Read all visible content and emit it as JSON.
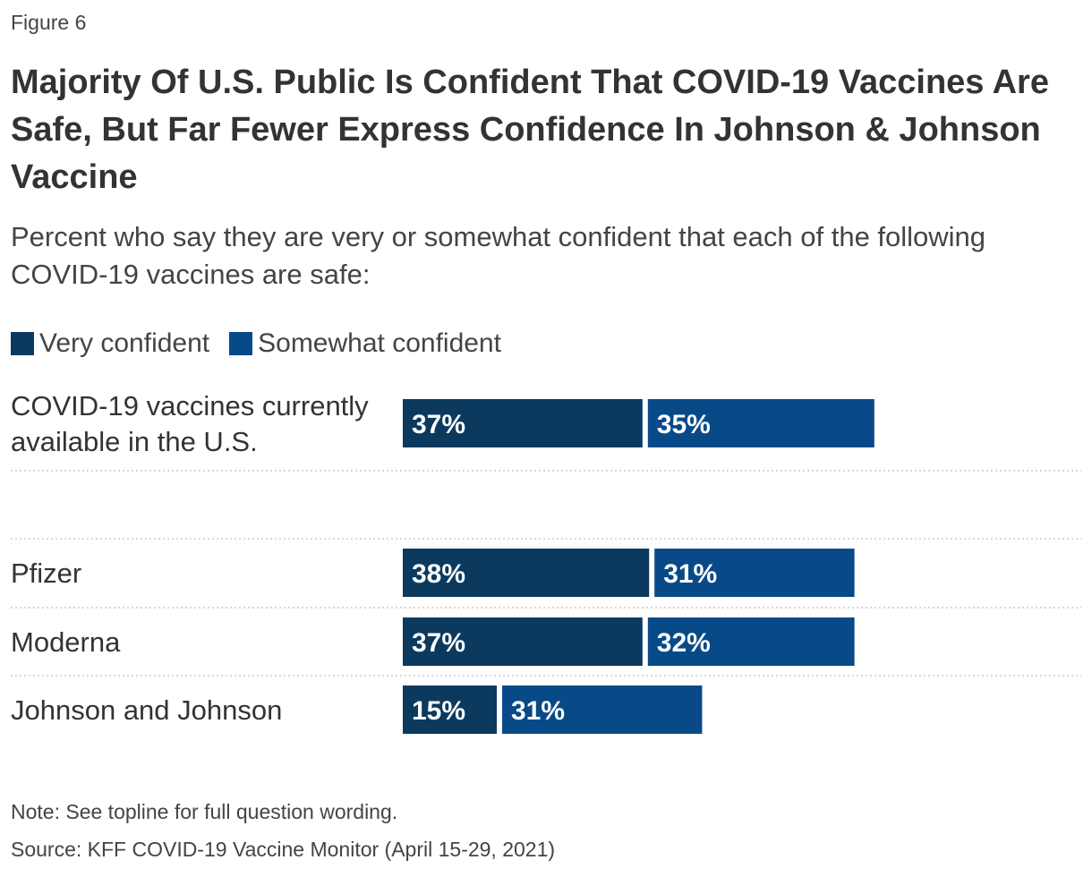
{
  "figure_label": "Figure 6",
  "title": "Majority Of U.S. Public Is Confident That COVID-19 Vaccines Are Safe, But Far Fewer Express Confidence In Johnson & Johnson Vaccine",
  "subtitle": "Percent who say they are very or somewhat confident that each of the following COVID-19 vaccines are safe:",
  "note": "Note: See topline for full question wording.",
  "source": "Source: KFF COVID-19 Vaccine Monitor (April 15-29, 2021)",
  "colors": {
    "very_confident": "#0b3a5e",
    "somewhat_confident": "#084a88",
    "label_text": "#ffffff",
    "divider": "#cccccc"
  },
  "chart_data": {
    "type": "bar",
    "orientation": "horizontal",
    "stacked": true,
    "categories": [
      [
        "COVID-19 vaccines currently",
        "available in the U.S."
      ],
      [
        "Pfizer"
      ],
      [
        "Moderna"
      ],
      [
        "Johnson and Johnson"
      ]
    ],
    "series": [
      {
        "name": "Very confident",
        "values": [
          37,
          38,
          37,
          15
        ],
        "labels": [
          "37%",
          "38%",
          "37%",
          "15%"
        ]
      },
      {
        "name": "Somewhat confident",
        "values": [
          35,
          31,
          32,
          31
        ],
        "labels": [
          "35%",
          "31%",
          "32%",
          "31%"
        ]
      }
    ],
    "xlim": [
      0,
      100
    ],
    "legend_position": "top-left",
    "grid": false
  }
}
